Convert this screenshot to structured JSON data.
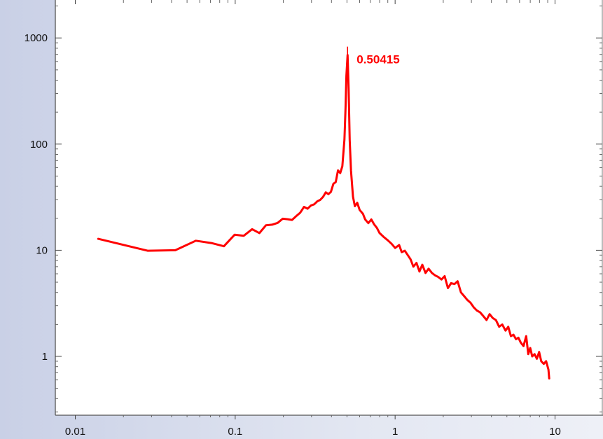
{
  "chart_data": {
    "type": "line",
    "title": "",
    "xlabel": "",
    "ylabel": "",
    "x_scale": "log",
    "y_scale": "log",
    "xlim": [
      0.008,
      11
    ],
    "ylim": [
      0.3,
      1700
    ],
    "x_ticks": [
      {
        "value": 0.01,
        "label": "0.01"
      },
      {
        "value": 0.1,
        "label": "0.1"
      },
      {
        "value": 1,
        "label": "1"
      },
      {
        "value": 10,
        "label": "10"
      }
    ],
    "y_ticks": [
      {
        "value": 1,
        "label": "1"
      },
      {
        "value": 10,
        "label": "10"
      },
      {
        "value": 100,
        "label": "100"
      },
      {
        "value": 1000,
        "label": "1000"
      }
    ],
    "grid": false,
    "series": [
      {
        "color": "#ff0000",
        "points": [
          [
            0.0139,
            12.8
          ],
          [
            0.0283,
            9.9
          ],
          [
            0.0422,
            10.0
          ],
          [
            0.0567,
            12.3
          ],
          [
            0.0709,
            11.7
          ],
          [
            0.085,
            10.9
          ],
          [
            0.0993,
            14.0
          ],
          [
            0.1132,
            13.7
          ],
          [
            0.1276,
            15.8
          ],
          [
            0.1417,
            14.5
          ],
          [
            0.1558,
            17.2
          ],
          [
            0.17,
            17.4
          ],
          [
            0.1843,
            18.1
          ],
          [
            0.1983,
            19.8
          ],
          [
            0.2127,
            19.6
          ],
          [
            0.2268,
            19.3
          ],
          [
            0.2409,
            21.0
          ],
          [
            0.2552,
            22.6
          ],
          [
            0.2693,
            25.6
          ],
          [
            0.2834,
            24.6
          ],
          [
            0.2977,
            26.4
          ],
          [
            0.3118,
            27.1
          ],
          [
            0.3262,
            28.9
          ],
          [
            0.3402,
            29.8
          ],
          [
            0.3543,
            31.8
          ],
          [
            0.3686,
            35.1
          ],
          [
            0.3827,
            33.8
          ],
          [
            0.3968,
            35.5
          ],
          [
            0.4111,
            42.2
          ],
          [
            0.4252,
            43.9
          ],
          [
            0.4395,
            56.5
          ],
          [
            0.4536,
            53.3
          ],
          [
            0.4677,
            61.8
          ],
          [
            0.4818,
            110
          ],
          [
            0.49,
            220
          ],
          [
            0.496,
            440
          ],
          [
            0.50415,
            690
          ],
          [
            0.512,
            330
          ],
          [
            0.52,
            110
          ],
          [
            0.53,
            56
          ],
          [
            0.545,
            32
          ],
          [
            0.56,
            26
          ],
          [
            0.58,
            28
          ],
          [
            0.6,
            24
          ],
          [
            0.63,
            22
          ],
          [
            0.65,
            19.5
          ],
          [
            0.68,
            18
          ],
          [
            0.71,
            19.5
          ],
          [
            0.74,
            17.5
          ],
          [
            0.77,
            16.2
          ],
          [
            0.8,
            14.5
          ],
          [
            0.85,
            13.3
          ],
          [
            0.9,
            12.4
          ],
          [
            0.95,
            11.5
          ],
          [
            1.0,
            10.5
          ],
          [
            1.06,
            11.2
          ],
          [
            1.1,
            9.6
          ],
          [
            1.15,
            9.9
          ],
          [
            1.2,
            9.0
          ],
          [
            1.25,
            8.2
          ],
          [
            1.3,
            7.0
          ],
          [
            1.36,
            7.6
          ],
          [
            1.42,
            6.3
          ],
          [
            1.48,
            7.3
          ],
          [
            1.55,
            6.1
          ],
          [
            1.62,
            6.7
          ],
          [
            1.7,
            6.1
          ],
          [
            1.78,
            5.8
          ],
          [
            1.86,
            5.6
          ],
          [
            1.95,
            5.3
          ],
          [
            2.04,
            5.7
          ],
          [
            2.14,
            4.4
          ],
          [
            2.24,
            4.9
          ],
          [
            2.35,
            4.8
          ],
          [
            2.46,
            5.1
          ],
          [
            2.58,
            4.0
          ],
          [
            2.7,
            3.7
          ],
          [
            2.83,
            3.4
          ],
          [
            2.96,
            3.2
          ],
          [
            3.1,
            2.9
          ],
          [
            3.25,
            2.7
          ],
          [
            3.4,
            2.6
          ],
          [
            3.56,
            2.4
          ],
          [
            3.73,
            2.2
          ],
          [
            3.9,
            2.5
          ],
          [
            4.08,
            2.3
          ],
          [
            4.27,
            2.2
          ],
          [
            4.47,
            1.9
          ],
          [
            4.68,
            2.0
          ],
          [
            4.9,
            1.75
          ],
          [
            5.1,
            1.9
          ],
          [
            5.3,
            1.55
          ],
          [
            5.5,
            1.6
          ],
          [
            5.7,
            1.45
          ],
          [
            5.9,
            1.5
          ],
          [
            6.1,
            1.35
          ],
          [
            6.35,
            1.25
          ],
          [
            6.6,
            1.55
          ],
          [
            6.8,
            1.05
          ],
          [
            7.0,
            1.2
          ],
          [
            7.2,
            1.0
          ],
          [
            7.45,
            1.05
          ],
          [
            7.7,
            0.95
          ],
          [
            7.95,
            1.1
          ],
          [
            8.2,
            0.9
          ],
          [
            8.5,
            0.85
          ],
          [
            8.8,
            0.9
          ],
          [
            9.1,
            0.75
          ],
          [
            9.2,
            0.62
          ]
        ]
      }
    ],
    "annotations": [
      {
        "x": 0.50415,
        "y": 690,
        "text": "0.50415",
        "color": "#ff0000"
      }
    ]
  }
}
